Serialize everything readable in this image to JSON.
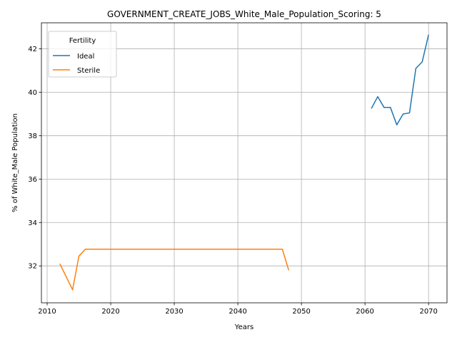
{
  "chart_data": {
    "type": "line",
    "title": "GOVERNMENT_CREATE_JOBS_White_Male_Population_Scoring: 5",
    "xlabel": "Years",
    "ylabel": "% of White_Male Population",
    "xlim": [
      2009.1,
      2072.9
    ],
    "ylim": [
      30.3,
      43.2
    ],
    "xticks": [
      2010,
      2020,
      2030,
      2040,
      2050,
      2060,
      2070
    ],
    "yticks": [
      32,
      34,
      36,
      38,
      40,
      42
    ],
    "grid": true,
    "legend": {
      "title": "Fertility",
      "placement": "top-left"
    },
    "series": [
      {
        "name": "Ideal",
        "color": "#1f77b4",
        "x": [
          2061,
          2062,
          2063,
          2064,
          2065,
          2066,
          2067,
          2068,
          2069,
          2070
        ],
        "y": [
          39.25,
          39.8,
          39.3,
          39.3,
          38.5,
          39.0,
          39.05,
          41.1,
          41.4,
          42.65
        ]
      },
      {
        "name": "Sterile",
        "color": "#ff7f0e",
        "x": [
          2012,
          2013,
          2014,
          2015,
          2016,
          2017,
          2020,
          2025,
          2030,
          2035,
          2040,
          2045,
          2046,
          2047,
          2048
        ],
        "y": [
          32.1,
          31.5,
          30.9,
          32.45,
          32.77,
          32.77,
          32.77,
          32.77,
          32.77,
          32.77,
          32.77,
          32.77,
          32.77,
          32.77,
          31.8
        ]
      }
    ]
  }
}
